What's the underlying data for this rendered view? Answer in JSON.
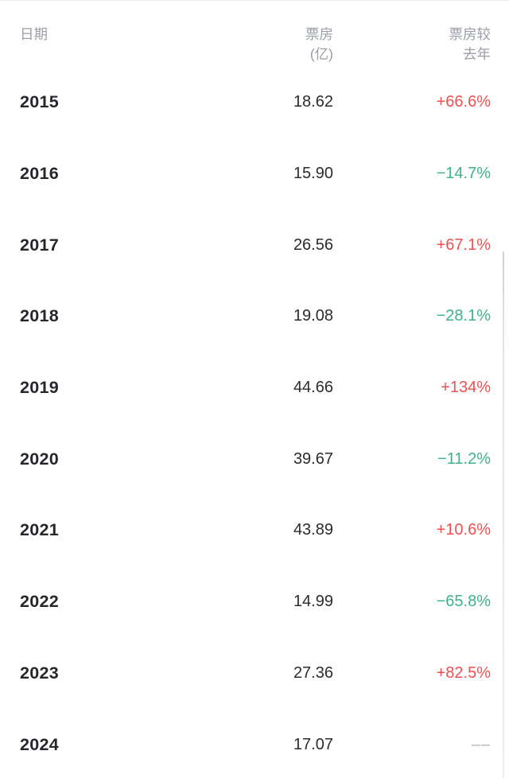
{
  "colors": {
    "up": "#f05050",
    "down": "#3cb389",
    "neutral": "#b5b5b5",
    "header": "#9a9ea8",
    "year": "#26262c",
    "value": "#2b2b30"
  },
  "table": {
    "columns": [
      {
        "label": "日期",
        "align": "left"
      },
      {
        "label": "票房\n(亿)",
        "align": "right"
      },
      {
        "label": "票房较\n去年",
        "align": "right"
      }
    ],
    "rows": [
      {
        "year": "2015",
        "boxoffice": "18.62",
        "yoy": "+66.6%",
        "trend": "up"
      },
      {
        "year": "2016",
        "boxoffice": "15.90",
        "yoy": "−14.7%",
        "trend": "down"
      },
      {
        "year": "2017",
        "boxoffice": "26.56",
        "yoy": "+67.1%",
        "trend": "up"
      },
      {
        "year": "2018",
        "boxoffice": "19.08",
        "yoy": "−28.1%",
        "trend": "down"
      },
      {
        "year": "2019",
        "boxoffice": "44.66",
        "yoy": "+134%",
        "trend": "up"
      },
      {
        "year": "2020",
        "boxoffice": "39.67",
        "yoy": "−11.2%",
        "trend": "down"
      },
      {
        "year": "2021",
        "boxoffice": "43.89",
        "yoy": "+10.6%",
        "trend": "up"
      },
      {
        "year": "2022",
        "boxoffice": "14.99",
        "yoy": "−65.8%",
        "trend": "down"
      },
      {
        "year": "2023",
        "boxoffice": "27.36",
        "yoy": "+82.5%",
        "trend": "up"
      },
      {
        "year": "2024",
        "boxoffice": "17.07",
        "yoy": "––",
        "trend": "none"
      }
    ]
  },
  "chart_data": {
    "type": "table",
    "columns": [
      "日期",
      "票房(亿)",
      "票房较去年"
    ],
    "rows": [
      [
        "2015",
        "18.62",
        "+66.6%"
      ],
      [
        "2016",
        "15.90",
        "−14.7%"
      ],
      [
        "2017",
        "26.56",
        "+67.1%"
      ],
      [
        "2018",
        "19.08",
        "−28.1%"
      ],
      [
        "2019",
        "44.66",
        "+134%"
      ],
      [
        "2020",
        "39.67",
        "−11.2%"
      ],
      [
        "2021",
        "43.89",
        "+10.6%"
      ],
      [
        "2022",
        "14.99",
        "−65.8%"
      ],
      [
        "2023",
        "27.36",
        "+82.5%"
      ],
      [
        "2024",
        "17.07",
        "––"
      ]
    ]
  }
}
